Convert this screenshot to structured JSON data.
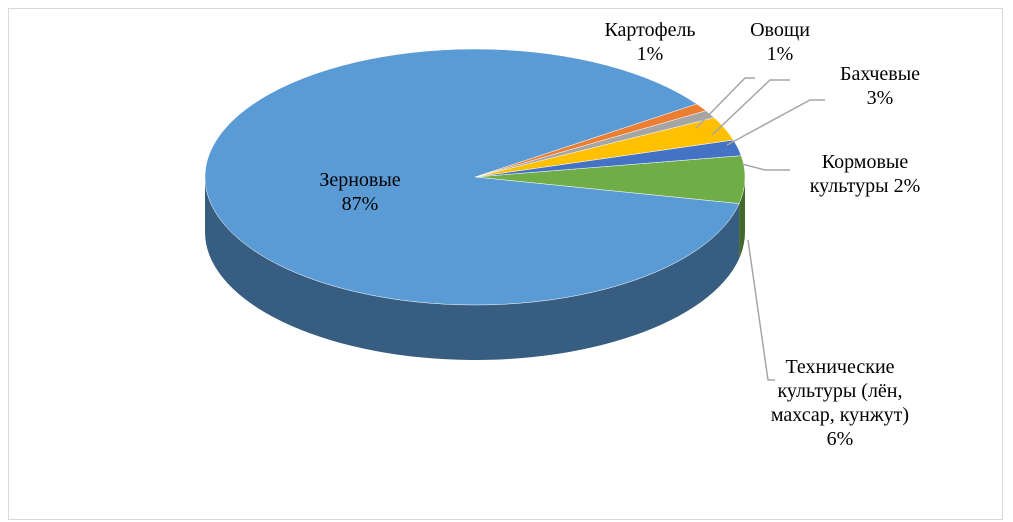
{
  "chart_data": {
    "type": "pie3d",
    "categories": [
      "Технические культуры (лён, махсар, кунжут)",
      "Кормовые культуры",
      "Бахчевые",
      "Овощи",
      "Картофель",
      "Зерновые"
    ],
    "values": [
      6,
      2,
      3,
      1,
      1,
      87
    ],
    "value_labels": [
      "6%",
      "2%",
      "3%",
      "1%",
      "1%",
      "87%"
    ],
    "colors": [
      "#70ad47",
      "#4472c4",
      "#ffc000",
      "#a5a5a5",
      "#ed7d31",
      "#5b9bd5"
    ]
  }
}
